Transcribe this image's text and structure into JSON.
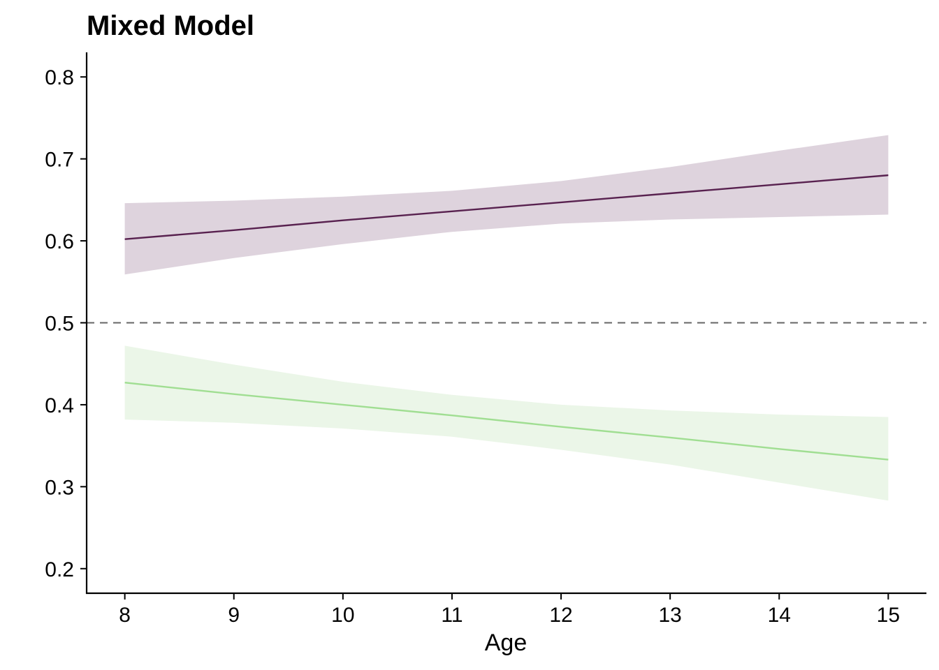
{
  "chart_data": {
    "type": "line",
    "title": "Mixed Model",
    "xlabel": "Age",
    "ylabel": "",
    "x": [
      8,
      9,
      10,
      11,
      12,
      13,
      14,
      15
    ],
    "xlim": [
      7.65,
      15.35
    ],
    "ylim": [
      0.17,
      0.83
    ],
    "xticks": [
      "8",
      "9",
      "10",
      "11",
      "12",
      "13",
      "14",
      "15"
    ],
    "yticks": [
      "0.2",
      "0.3",
      "0.4",
      "0.5",
      "0.6",
      "0.7",
      "0.8"
    ],
    "grid": false,
    "legend": "none",
    "reference_line": {
      "y": 0.5,
      "style": "dashed",
      "color": "#666666"
    },
    "series": [
      {
        "color": "#58214F",
        "band_color": "#DED3DD",
        "values": [
          0.602,
          0.613,
          0.625,
          0.636,
          0.647,
          0.658,
          0.669,
          0.68
        ],
        "lower": [
          0.559,
          0.579,
          0.596,
          0.611,
          0.621,
          0.626,
          0.629,
          0.632
        ],
        "upper": [
          0.646,
          0.649,
          0.654,
          0.661,
          0.673,
          0.69,
          0.71,
          0.729
        ]
      },
      {
        "color": "#A0DE92",
        "band_color": "#EBF6E8",
        "values": [
          0.427,
          0.413,
          0.4,
          0.387,
          0.373,
          0.36,
          0.346,
          0.333
        ],
        "lower": [
          0.382,
          0.378,
          0.371,
          0.361,
          0.345,
          0.327,
          0.305,
          0.283
        ],
        "upper": [
          0.472,
          0.449,
          0.428,
          0.412,
          0.4,
          0.393,
          0.388,
          0.385
        ]
      }
    ]
  }
}
